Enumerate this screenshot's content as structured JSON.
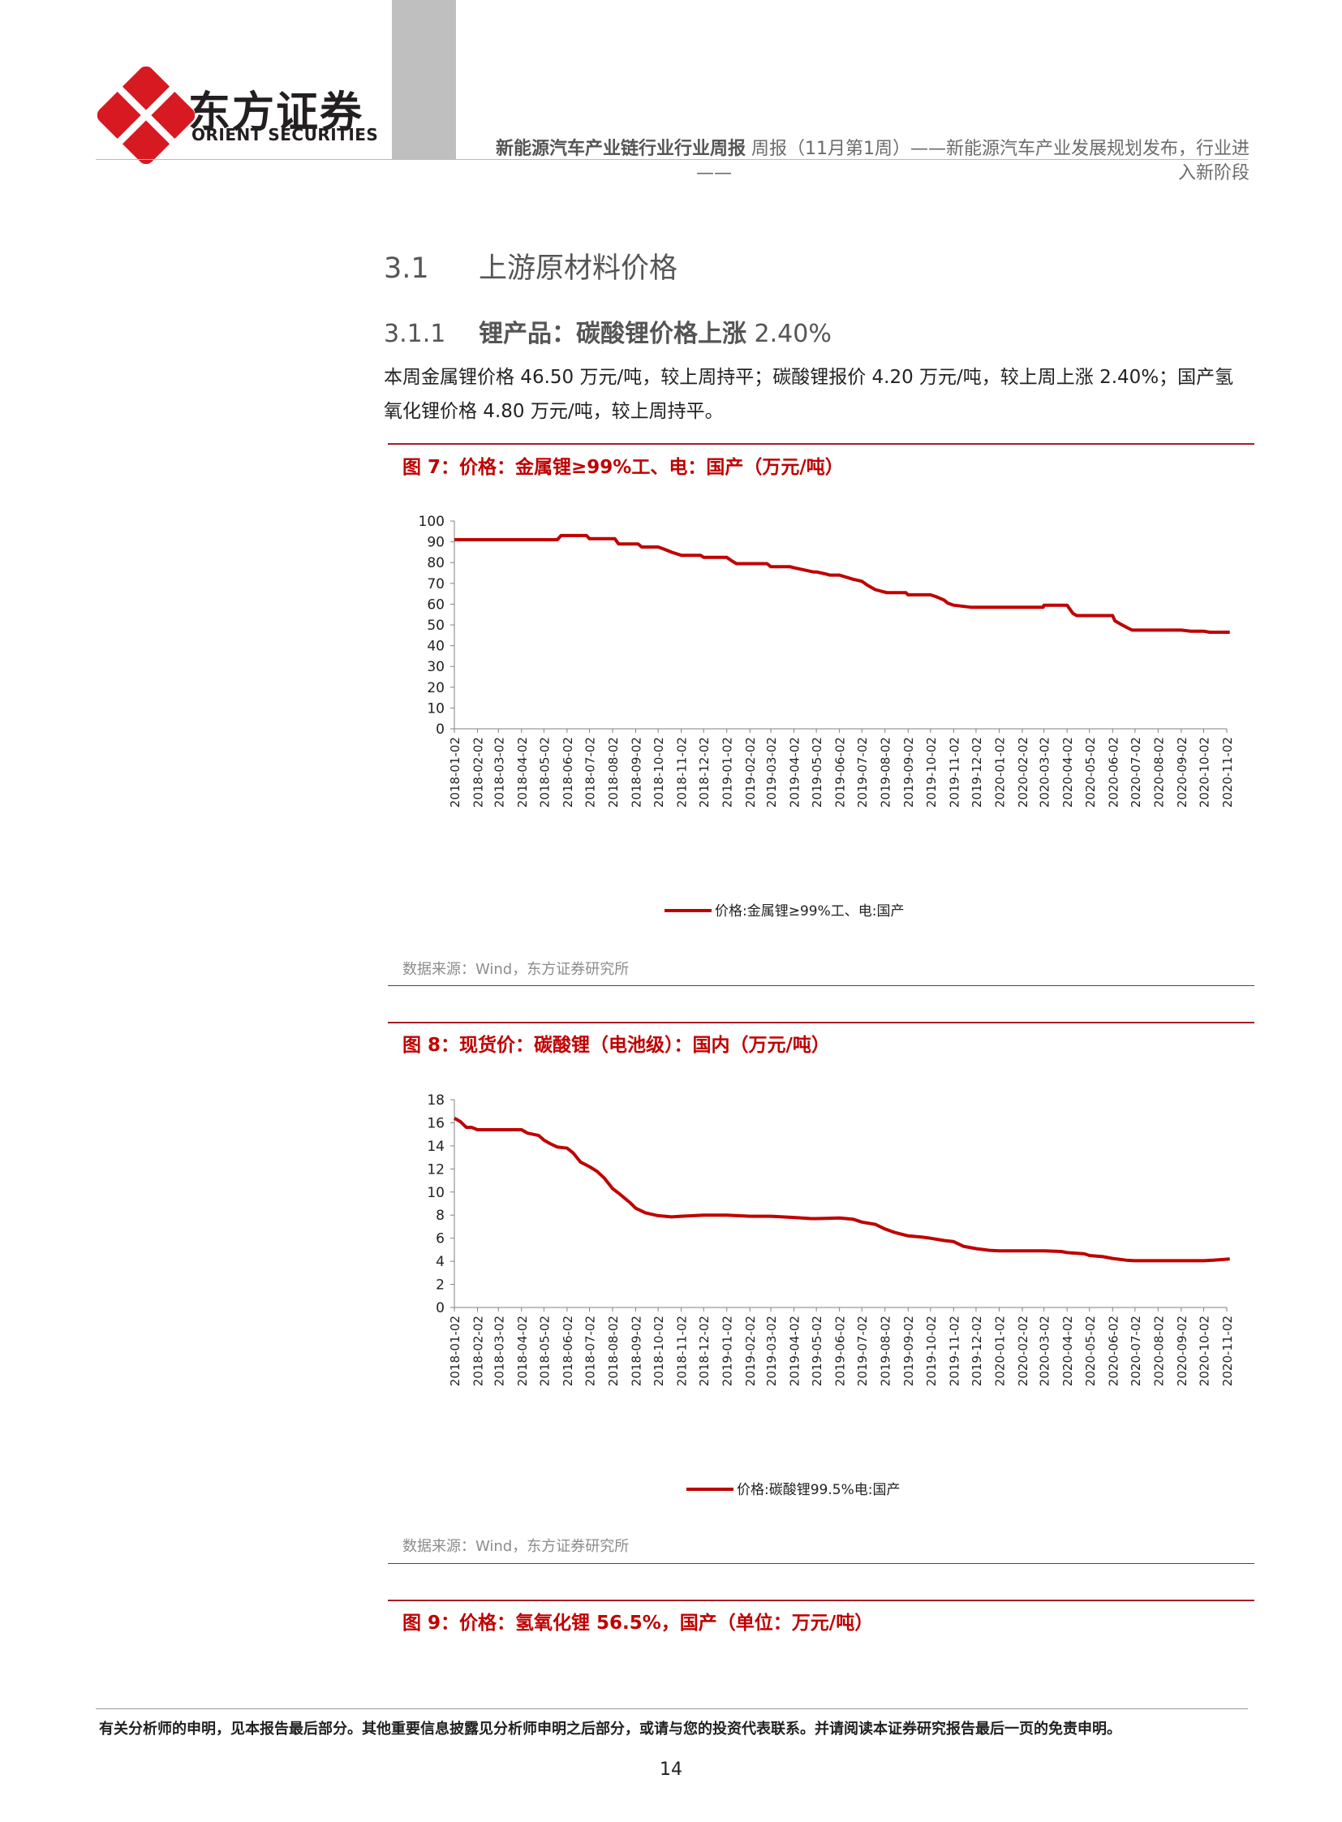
{
  "header": {
    "logo_cn": "东方证券",
    "logo_en": "ORIENT SECURITIES",
    "report_series": "新能源汽车产业链行业行业周报",
    "report_title_1": "周报（11月第1周）——新能源汽车产业发展规划发布，行业进",
    "report_title_dash": "——",
    "report_title_2": "入新阶段"
  },
  "section": {
    "num": "3.1",
    "title": "上游原材料价格"
  },
  "subsection": {
    "num": "3.1.1",
    "title": "锂产品：碳酸锂价格上涨",
    "pct": "2.40%"
  },
  "body": "本周金属锂价格 46.50 万元/吨，较上周持平；碳酸锂报价 4.20 万元/吨，较上周上涨 2.40%；国产氢氧化锂价格 4.80 万元/吨，较上周持平。",
  "figures": [
    {
      "title": "图 7：价格：金属锂≥99%工、电：国产（万元/吨）",
      "source": "数据来源：Wind，东方证券研究所"
    },
    {
      "title": "图 8：现货价：碳酸锂（电池级）：国内（万元/吨）",
      "source": "数据来源：Wind，东方证券研究所"
    },
    {
      "title": "图 9：价格：氢氧化锂 56.5%，国产（单位：万元/吨）"
    }
  ],
  "chart_data": [
    {
      "type": "line",
      "title": "",
      "xlabel": "",
      "ylabel": "",
      "ylim": [
        0,
        100
      ],
      "yticks": [
        0,
        10,
        20,
        30,
        40,
        50,
        60,
        70,
        80,
        90,
        100
      ],
      "xticks": [
        "2018-01-02",
        "2018-02-02",
        "2018-03-02",
        "2018-04-02",
        "2018-05-02",
        "2018-06-02",
        "2018-07-02",
        "2018-08-02",
        "2018-09-02",
        "2018-10-02",
        "2018-11-02",
        "2018-12-02",
        "2019-01-02",
        "2019-02-02",
        "2019-03-02",
        "2019-04-02",
        "2019-05-02",
        "2019-06-02",
        "2019-07-02",
        "2019-08-02",
        "2019-09-02",
        "2019-10-02",
        "2019-11-02",
        "2019-12-02",
        "2020-01-02",
        "2020-02-02",
        "2020-03-02",
        "2020-04-02",
        "2020-05-02",
        "2020-06-02",
        "2020-07-02",
        "2020-08-02",
        "2020-09-02",
        "2020-10-02",
        "2020-11-02"
      ],
      "legend_position": "bottom",
      "series": [
        {
          "name": "价格:金属锂≥99%工、电:国产",
          "color": "#c00000",
          "x": [
            "2018-01-02",
            "2018-05-20",
            "2018-05-25",
            "2018-06-28",
            "2018-07-02",
            "2018-08-05",
            "2018-08-10",
            "2018-09-05",
            "2018-09-10",
            "2018-10-02",
            "2018-10-10",
            "2018-10-20",
            "2018-11-02",
            "2018-11-28",
            "2018-12-02",
            "2018-12-28",
            "2019-01-02",
            "2019-01-10",
            "2019-01-15",
            "2019-02-25",
            "2019-03-02",
            "2019-03-28",
            "2019-04-02",
            "2019-04-28",
            "2019-05-02",
            "2019-05-15",
            "2019-05-20",
            "2019-06-02",
            "2019-06-20",
            "2019-07-02",
            "2019-07-10",
            "2019-07-20",
            "2019-07-30",
            "2019-08-05",
            "2019-08-30",
            "2019-09-02",
            "2019-10-02",
            "2019-10-10",
            "2019-10-20",
            "2019-10-25",
            "2019-11-02",
            "2019-11-25",
            "2019-12-02",
            "2020-03-01",
            "2020-03-02",
            "2020-04-02",
            "2020-04-06",
            "2020-04-10",
            "2020-04-15",
            "2020-06-02",
            "2020-06-05",
            "2020-06-12",
            "2020-06-20",
            "2020-06-28",
            "2020-07-02",
            "2020-08-02",
            "2020-09-02",
            "2020-09-15",
            "2020-10-02",
            "2020-10-10",
            "2020-11-06"
          ],
          "y": [
            91,
            91,
            93,
            93,
            91.5,
            91.5,
            89,
            89,
            87.5,
            87.5,
            86.5,
            85,
            83.5,
            83.5,
            82.5,
            82.5,
            82.5,
            80.5,
            79.5,
            79.5,
            78,
            78,
            77.5,
            75.5,
            75.5,
            74.5,
            74,
            74,
            72,
            71,
            69,
            67,
            66,
            65.5,
            65.5,
            64.5,
            64.5,
            63.5,
            62,
            60.5,
            59.5,
            58.5,
            58.5,
            58.5,
            59.5,
            59.5,
            57.5,
            55.5,
            54.5,
            54.5,
            52,
            50.5,
            49,
            47.5,
            47.5,
            47.5,
            47.5,
            47,
            47,
            46.5,
            46.5
          ]
        }
      ]
    },
    {
      "type": "line",
      "title": "",
      "xlabel": "",
      "ylabel": "",
      "ylim": [
        0,
        18
      ],
      "yticks": [
        0,
        2,
        4,
        6,
        8,
        10,
        12,
        14,
        16,
        18
      ],
      "xticks": [
        "2018-01-02",
        "2018-02-02",
        "2018-03-02",
        "2018-04-02",
        "2018-05-02",
        "2018-06-02",
        "2018-07-02",
        "2018-08-02",
        "2018-09-02",
        "2018-10-02",
        "2018-11-02",
        "2018-12-02",
        "2019-01-02",
        "2019-02-02",
        "2019-03-02",
        "2019-04-02",
        "2019-05-02",
        "2019-06-02",
        "2019-07-02",
        "2019-08-02",
        "2019-09-02",
        "2019-10-02",
        "2019-11-02",
        "2019-12-02",
        "2020-01-02",
        "2020-02-02",
        "2020-03-02",
        "2020-04-02",
        "2020-05-02",
        "2020-06-02",
        "2020-07-02",
        "2020-08-02",
        "2020-09-02",
        "2020-10-02",
        "2020-11-02"
      ],
      "legend_position": "bottom",
      "series": [
        {
          "name": "价格:碳酸锂99.5%电:国产",
          "color": "#c00000",
          "x": [
            "2018-01-02",
            "2018-01-10",
            "2018-01-18",
            "2018-01-25",
            "2018-02-02",
            "2018-02-10",
            "2018-03-02",
            "2018-03-20",
            "2018-04-02",
            "2018-04-10",
            "2018-04-25",
            "2018-05-02",
            "2018-05-10",
            "2018-05-20",
            "2018-06-02",
            "2018-06-10",
            "2018-06-20",
            "2018-07-02",
            "2018-07-12",
            "2018-07-22",
            "2018-08-02",
            "2018-08-12",
            "2018-08-25",
            "2018-09-02",
            "2018-09-15",
            "2018-10-02",
            "2018-10-20",
            "2018-11-02",
            "2018-12-02",
            "2019-01-02",
            "2019-02-02",
            "2019-03-02",
            "2019-04-02",
            "2019-04-25",
            "2019-05-02",
            "2019-06-02",
            "2019-06-20",
            "2019-07-02",
            "2019-07-20",
            "2019-08-02",
            "2019-08-15",
            "2019-09-02",
            "2019-09-20",
            "2019-10-02",
            "2019-10-20",
            "2019-11-02",
            "2019-11-15",
            "2019-12-02",
            "2019-12-20",
            "2020-01-02",
            "2020-02-02",
            "2020-03-02",
            "2020-03-25",
            "2020-04-02",
            "2020-04-25",
            "2020-05-02",
            "2020-05-20",
            "2020-06-02",
            "2020-06-20",
            "2020-07-02",
            "2020-08-02",
            "2020-09-02",
            "2020-10-02",
            "2020-10-15",
            "2020-11-06"
          ],
          "y": [
            16.4,
            16.1,
            15.6,
            15.6,
            15.4,
            15.4,
            15.4,
            15.4,
            15.4,
            15.1,
            14.9,
            14.5,
            14.2,
            13.9,
            13.8,
            13.4,
            12.6,
            12.2,
            11.8,
            11.2,
            10.3,
            9.8,
            9.1,
            8.6,
            8.2,
            7.95,
            7.85,
            7.9,
            8.0,
            8.0,
            7.9,
            7.9,
            7.8,
            7.7,
            7.7,
            7.75,
            7.65,
            7.4,
            7.2,
            6.8,
            6.5,
            6.2,
            6.1,
            6.0,
            5.8,
            5.7,
            5.3,
            5.1,
            4.95,
            4.9,
            4.9,
            4.9,
            4.85,
            4.75,
            4.65,
            4.5,
            4.4,
            4.25,
            4.1,
            4.05,
            4.05,
            4.05,
            4.05,
            4.1,
            4.2
          ]
        }
      ]
    }
  ],
  "footer": {
    "disclaimer": "有关分析师的申明，见本报告最后部分。其他重要信息披露见分析师申明之后部分，或请与您的投资代表联系。并请阅读本证券研究报告最后一页的免责申明。",
    "page": "14"
  }
}
